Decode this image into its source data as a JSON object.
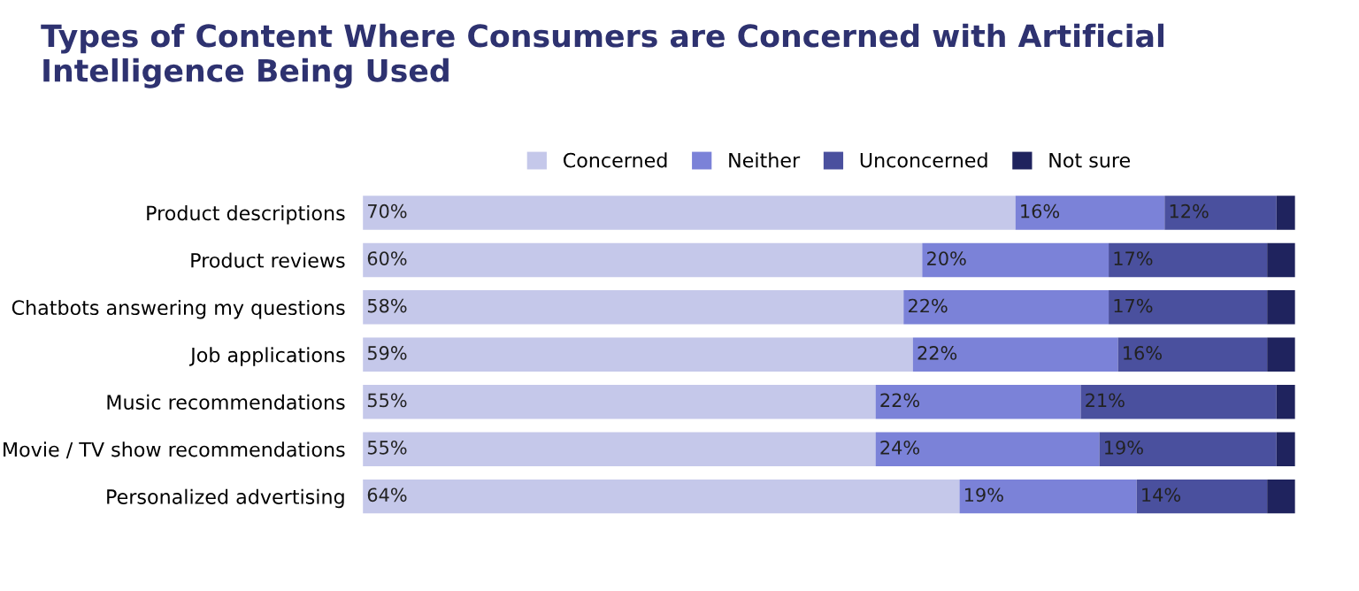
{
  "chart_data": {
    "type": "bar",
    "orientation": "horizontal",
    "stacked": true,
    "title": "Types of Content Where Consumers are Concerned with Artificial Intelligence Being Used",
    "categories": [
      "Product descriptions",
      "Product reviews",
      "Chatbots answering my questions",
      "Job applications",
      "Music recommendations",
      "Movie / TV show recommendations",
      "Personalized advertising"
    ],
    "series": [
      {
        "name": "Concerned",
        "color": "#c5c8ea",
        "values": [
          70,
          60,
          58,
          59,
          55,
          55,
          64
        ],
        "value_labels": [
          "70%",
          "60%",
          "58%",
          "59%",
          "55%",
          "55%",
          "64%"
        ]
      },
      {
        "name": "Neither",
        "color": "#7b82d8",
        "values": [
          16,
          20,
          22,
          22,
          22,
          24,
          19
        ],
        "value_labels": [
          "16%",
          "20%",
          "22%",
          "22%",
          "22%",
          "24%",
          "19%"
        ]
      },
      {
        "name": "Unconcerned",
        "color": "#4a509e",
        "values": [
          12,
          17,
          17,
          16,
          21,
          19,
          14
        ],
        "value_labels": [
          "12%",
          "17%",
          "17%",
          "16%",
          "21%",
          "19%",
          "14%"
        ]
      },
      {
        "name": "Not sure",
        "color": "#1f235e",
        "values": [
          2,
          3,
          3,
          3,
          2,
          2,
          3
        ],
        "value_labels": [
          null,
          null,
          null,
          null,
          null,
          null,
          null
        ]
      }
    ],
    "xlim": [
      0,
      100
    ],
    "tick_labels": "y",
    "grid": false,
    "legend": "top"
  }
}
